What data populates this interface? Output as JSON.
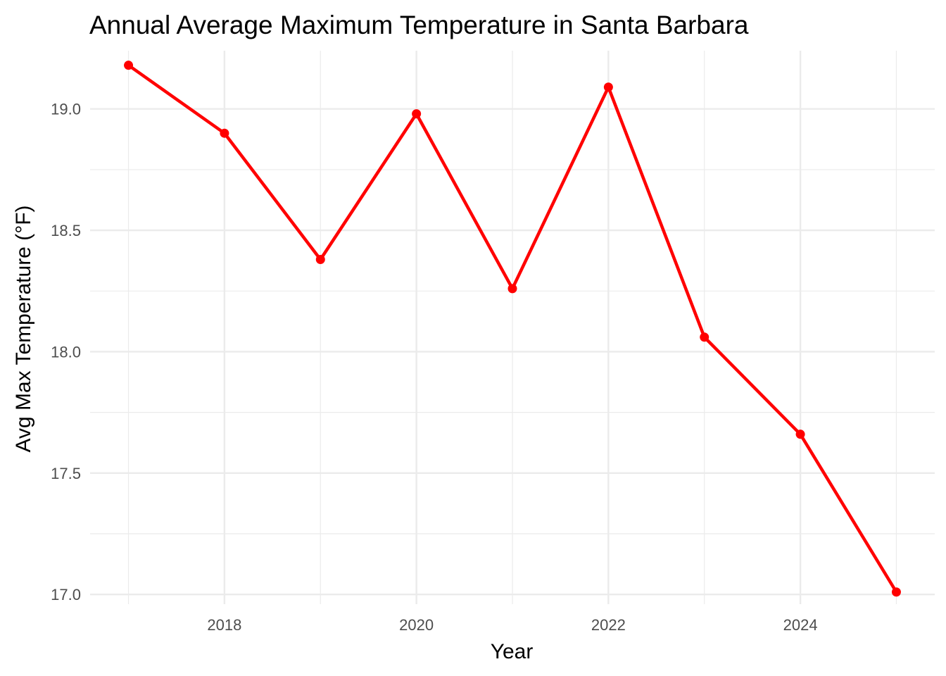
{
  "chart_data": {
    "type": "line",
    "title": "Annual Average Maximum Temperature in Santa Barbara",
    "xlabel": "Year",
    "ylabel": "Avg Max Temperature (°F)",
    "x": [
      2017,
      2018,
      2019,
      2020,
      2021,
      2022,
      2023,
      2024,
      2025
    ],
    "series": [
      {
        "values": [
          19.18,
          18.9,
          18.38,
          18.98,
          18.26,
          19.09,
          18.06,
          17.66,
          17.01
        ],
        "color": "#ff0000"
      }
    ],
    "xlim": [
      2016.6,
      2025.4
    ],
    "ylim": [
      16.96,
      19.24
    ],
    "x_ticks": [
      2018,
      2020,
      2022,
      2024
    ],
    "x_tick_labels": [
      "2018",
      "2020",
      "2022",
      "2024"
    ],
    "x_minor_ticks": [
      2017,
      2019,
      2021,
      2023,
      2025
    ],
    "y_ticks": [
      17.0,
      17.5,
      18.0,
      18.5,
      19.0
    ],
    "y_tick_labels": [
      "17.0",
      "17.5",
      "18.0",
      "18.5",
      "19.0"
    ],
    "y_minor_ticks": [
      17.25,
      17.75,
      18.25,
      18.75,
      19.25
    ],
    "grid": true,
    "legend": "none"
  }
}
